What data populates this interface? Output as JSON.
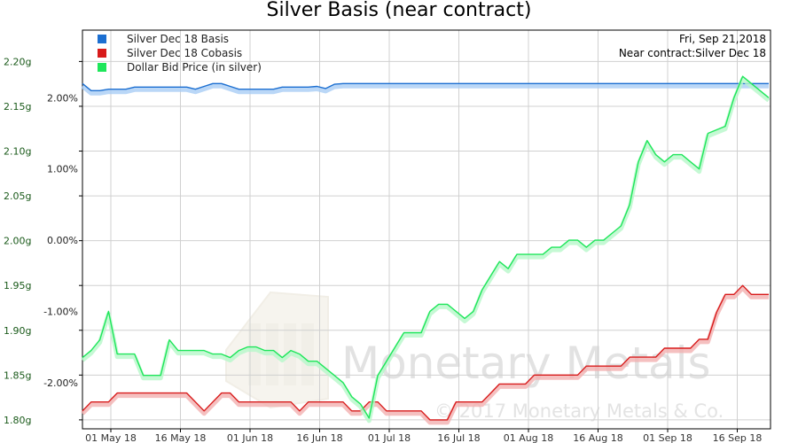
{
  "chart_data": {
    "type": "line",
    "title": "Silver Basis (near contract)",
    "info": {
      "date": "Fri, Sep 21,2018",
      "contract": "Near contract:Silver Dec 18"
    },
    "watermark": "Monetary Metals",
    "copyright": "© 2017 Monetary Metals & Co.",
    "x_ticks": [
      "01 May 18",
      "16 May 18",
      "01 Jun 18",
      "16 Jun 18",
      "01 Jul 18",
      "16 Jul 18",
      "01 Aug 18",
      "16 Aug 18",
      "01 Sep 18",
      "16 Sep 18"
    ],
    "y_left": {
      "ticks": [
        "1.80g",
        "1.85g",
        "1.90g",
        "1.95g",
        "2.00g",
        "2.05g",
        "2.10g",
        "2.15g",
        "2.20g"
      ],
      "range": [
        1.79,
        2.235
      ]
    },
    "y_right": {
      "ticks": [
        "-2.00%",
        "-1.00%",
        "0.00%",
        "1.00%",
        "2.00%"
      ],
      "range": [
        -2.65,
        2.95
      ]
    },
    "grid": true,
    "legend_position": "top-left",
    "series": [
      {
        "name": "Silver Dec 18 Basis",
        "color": "#1c6fd1",
        "glow": "#a9cdf5",
        "axis": "right",
        "values": [
          2.2,
          2.1,
          2.1,
          2.12,
          2.12,
          2.12,
          2.15,
          2.15,
          2.15,
          2.15,
          2.15,
          2.15,
          2.15,
          2.12,
          2.16,
          2.2,
          2.2,
          2.16,
          2.12,
          2.12,
          2.12,
          2.12,
          2.12,
          2.15,
          2.15,
          2.15,
          2.15,
          2.16,
          2.13,
          2.19,
          2.2,
          2.2,
          2.2,
          2.2,
          2.2,
          2.2,
          2.2,
          2.2,
          2.2,
          2.2,
          2.2,
          2.2,
          2.2,
          2.2,
          2.2,
          2.2,
          2.2,
          2.2,
          2.2,
          2.2,
          2.2,
          2.2,
          2.2,
          2.2,
          2.2,
          2.2,
          2.2,
          2.2,
          2.2,
          2.2,
          2.2,
          2.2,
          2.2,
          2.2,
          2.2,
          2.2,
          2.2,
          2.2,
          2.2,
          2.2,
          2.2,
          2.2,
          2.2,
          2.2,
          2.2,
          2.2,
          2.2,
          2.2,
          2.2,
          2.2
        ]
      },
      {
        "name": "Silver Dec 18 Cobasis",
        "color": "#d81b1b",
        "glow": "#f3b0b0",
        "axis": "left",
        "values": [
          1.81,
          1.82,
          1.82,
          1.82,
          1.83,
          1.83,
          1.83,
          1.83,
          1.83,
          1.83,
          1.83,
          1.83,
          1.83,
          1.82,
          1.81,
          1.82,
          1.83,
          1.83,
          1.82,
          1.82,
          1.82,
          1.82,
          1.82,
          1.82,
          1.82,
          1.81,
          1.82,
          1.82,
          1.82,
          1.82,
          1.82,
          1.81,
          1.81,
          1.82,
          1.82,
          1.81,
          1.81,
          1.81,
          1.81,
          1.81,
          1.8,
          1.8,
          1.8,
          1.82,
          1.82,
          1.82,
          1.82,
          1.83,
          1.84,
          1.84,
          1.84,
          1.84,
          1.85,
          1.85,
          1.85,
          1.85,
          1.85,
          1.85,
          1.86,
          1.86,
          1.86,
          1.86,
          1.86,
          1.87,
          1.87,
          1.87,
          1.87,
          1.88,
          1.88,
          1.88,
          1.88,
          1.89,
          1.89,
          1.92,
          1.94,
          1.94,
          1.95,
          1.94,
          1.94,
          1.94
        ]
      },
      {
        "name": "Dollar Bid Price (in silver)",
        "color": "#1ee65a",
        "glow": "#b6f7c9",
        "axis": "right",
        "values": [
          -1.65,
          -1.55,
          -1.4,
          -1.0,
          -1.6,
          -1.6,
          -1.6,
          -1.9,
          -1.9,
          -1.9,
          -1.4,
          -1.55,
          -1.55,
          -1.55,
          -1.55,
          -1.6,
          -1.6,
          -1.65,
          -1.55,
          -1.5,
          -1.5,
          -1.55,
          -1.55,
          -1.65,
          -1.55,
          -1.6,
          -1.7,
          -1.7,
          -1.8,
          -1.9,
          -2.0,
          -2.2,
          -2.3,
          -2.5,
          -1.9,
          -1.7,
          -1.5,
          -1.3,
          -1.3,
          -1.3,
          -1.0,
          -0.9,
          -0.9,
          -1.0,
          -1.1,
          -1.0,
          -0.7,
          -0.5,
          -0.3,
          -0.4,
          -0.2,
          -0.2,
          -0.2,
          -0.2,
          -0.1,
          -0.1,
          0.0,
          0.0,
          -0.1,
          0.0,
          0.0,
          0.1,
          0.2,
          0.5,
          1.1,
          1.4,
          1.2,
          1.1,
          1.2,
          1.2,
          1.1,
          1.0,
          1.5,
          1.55,
          1.6,
          2.0,
          2.3,
          2.2,
          2.1,
          2.0
        ]
      }
    ]
  }
}
